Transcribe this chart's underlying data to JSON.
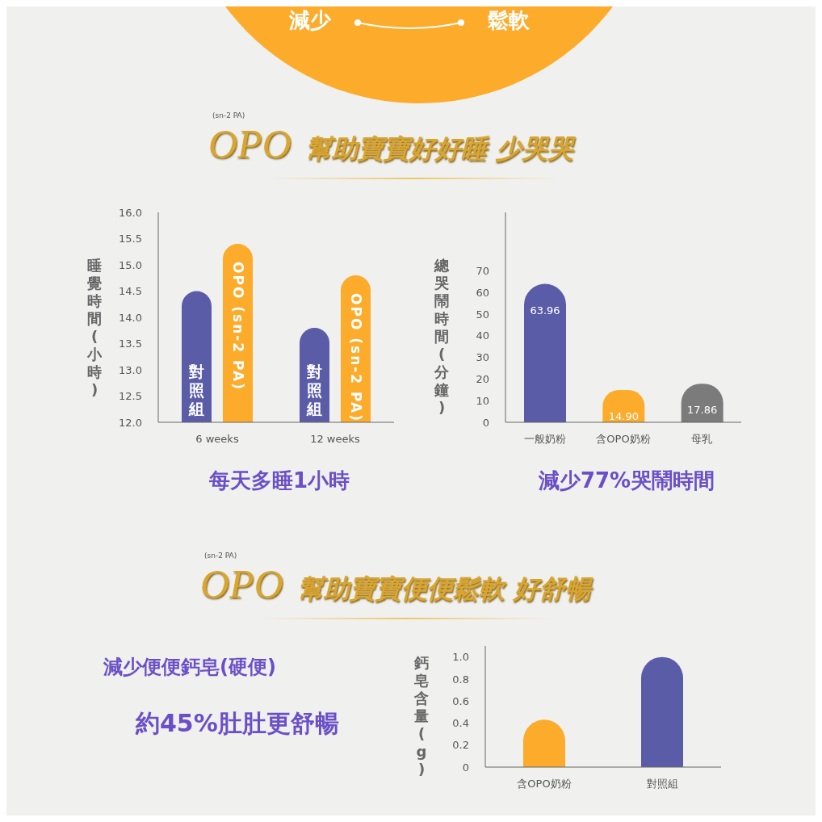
{
  "chart_data": [
    {
      "type": "other",
      "annotations": [
        "減少",
        "鬆軟"
      ]
    },
    {
      "type": "other",
      "title": "OPO",
      "subtitle": "幫助寶寶好好睡 少哭哭",
      "annotations": [
        "(sn-2 PA)"
      ]
    },
    {
      "type": "bar",
      "categories": [
        "6 weeks",
        "12 weeks"
      ],
      "ylabel": "睡覺時間(小時)",
      "ylim": [
        12,
        16
      ],
      "yticks": [
        {
          "value": 12,
          "label": "12.0"
        },
        12.5,
        {
          "value": 13,
          "label": "13.0"
        },
        13.5,
        {
          "value": 14,
          "label": "14.0"
        },
        14.5,
        {
          "value": 15,
          "label": "15.0"
        },
        15.5,
        {
          "value": 16,
          "label": "16.0"
        }
      ],
      "series": [
        {
          "name": "對照組",
          "color": "#5b5ca8",
          "values": [
            14.5,
            13.8
          ]
        },
        {
          "name": "OPO (sn-2 PA)",
          "color": "#fcab2a",
          "values": [
            15.4,
            14.8
          ]
        }
      ],
      "annotations": [
        "每天多睡1小時"
      ]
    },
    {
      "type": "bar",
      "categories": [
        "一般奶粉",
        "含OPO奶粉",
        "母乳"
      ],
      "ylabel": "總哭鬧時間(分鐘)",
      "ylim": [
        0,
        97
      ],
      "yticks": [
        0,
        10,
        20,
        30,
        40,
        50,
        60,
        70
      ],
      "values": [
        63.96,
        14.9,
        17.86
      ],
      "value_labels": [
        "63.96",
        "14.90",
        "17.86"
      ],
      "colors": [
        "#5b5ca8",
        "#fcab2a",
        "#7b7b7b"
      ],
      "annotations": [
        "減少77%哭鬧時間"
      ]
    },
    {
      "type": "other",
      "title": "OPO",
      "subtitle": "幫助寶寶便便鬆軟 好舒暢",
      "annotations": [
        "(sn-2 PA)",
        "減少便便鈣皂(硬便)",
        "約45%肚肚更舒暢"
      ]
    },
    {
      "type": "bar",
      "categories": [
        "含OPO奶粉",
        "對照組"
      ],
      "ylabel": "鈣皂含量(g)",
      "ylim": [
        0,
        1.1
      ],
      "yticks": [
        0,
        0.2,
        0.4,
        0.6,
        0.8,
        {
          "value": 1,
          "label": "1.0"
        }
      ],
      "values": [
        0.43,
        1.0
      ],
      "colors": [
        "#fcab2a",
        "#5b5ca8"
      ]
    }
  ]
}
